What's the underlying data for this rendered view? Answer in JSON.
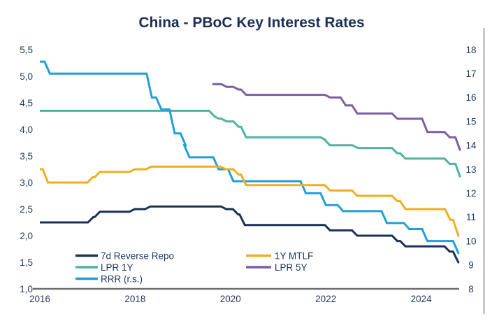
{
  "title": "China - PBoC Key Interest Rates",
  "colors": {
    "navy": "#1b3158",
    "teal": "#4fb3a2",
    "blue": "#1f9fd8",
    "yellow": "#efae1e",
    "purple": "#7c5fa3",
    "text": "#23395c",
    "axis_line": "#6e6e6e",
    "right_border": "#ababab",
    "background": "#ffffff"
  },
  "chart_data": {
    "type": "line",
    "subtype": "step",
    "title": "China - PBoC Key Interest Rates",
    "x_axis": {
      "min": 2016,
      "max": 2024.85,
      "ticks": [
        2016,
        2018,
        2020,
        2022,
        2024
      ],
      "tick_labels": [
        "2016",
        "2018",
        "2020",
        "2022",
        "2024"
      ]
    },
    "left_axis": {
      "min": 1.0,
      "max": 5.5,
      "tick_step": 0.5,
      "ticks": [
        5.5,
        5.0,
        4.5,
        4.0,
        3.5,
        3.0,
        2.5,
        2.0,
        1.5,
        1.0
      ],
      "tick_labels": [
        "5,5",
        "5,0",
        "4,5",
        "4,0",
        "3,5",
        "3,0",
        "2,5",
        "2,0",
        "1,5",
        "1,0"
      ]
    },
    "right_axis": {
      "min": 8,
      "max": 18,
      "tick_step": 1,
      "ticks": [
        18,
        17,
        16,
        15,
        14,
        13,
        12,
        11,
        10,
        9,
        8
      ],
      "tick_labels": [
        "18",
        "17",
        "16",
        "15",
        "14",
        "13",
        "12",
        "11",
        "10",
        "9",
        "8"
      ]
    },
    "grid": false,
    "legend_position": "bottom-left-two-columns",
    "series": [
      {
        "name": "7d Reverse Repo",
        "axis": "left",
        "color": "#1b3158",
        "end": 2024.8,
        "points": [
          [
            2016.0,
            2.25
          ],
          [
            2017.08,
            2.35
          ],
          [
            2017.22,
            2.45
          ],
          [
            2017.95,
            2.5
          ],
          [
            2018.28,
            2.55
          ],
          [
            2019.87,
            2.5
          ],
          [
            2020.12,
            2.4
          ],
          [
            2020.26,
            2.2
          ],
          [
            2022.05,
            2.1
          ],
          [
            2022.62,
            2.0
          ],
          [
            2023.46,
            1.9
          ],
          [
            2023.63,
            1.8
          ],
          [
            2024.56,
            1.7
          ],
          [
            2024.74,
            1.5
          ]
        ]
      },
      {
        "name": "LPR 1Y",
        "axis": "left",
        "color": "#4fb3a2",
        "end": 2024.82,
        "points": [
          [
            2016.0,
            4.35
          ],
          [
            2019.62,
            4.25
          ],
          [
            2019.72,
            4.2
          ],
          [
            2019.88,
            4.15
          ],
          [
            2020.13,
            4.05
          ],
          [
            2020.29,
            3.85
          ],
          [
            2021.96,
            3.8
          ],
          [
            2022.05,
            3.7
          ],
          [
            2022.63,
            3.65
          ],
          [
            2023.46,
            3.55
          ],
          [
            2023.63,
            3.45
          ],
          [
            2024.56,
            3.35
          ],
          [
            2024.79,
            3.1
          ]
        ]
      },
      {
        "name": "RRR (r.s.)",
        "axis": "right",
        "color": "#1f9fd8",
        "end": 2024.8,
        "points": [
          [
            2016.0,
            17.5
          ],
          [
            2016.17,
            17.0
          ],
          [
            2018.31,
            16.0
          ],
          [
            2018.51,
            15.5
          ],
          [
            2018.79,
            14.5
          ],
          [
            2019.02,
            14.0
          ],
          [
            2019.1,
            13.5
          ],
          [
            2019.71,
            13.0
          ],
          [
            2020.02,
            12.5
          ],
          [
            2021.54,
            12.0
          ],
          [
            2021.96,
            11.5
          ],
          [
            2022.32,
            11.25
          ],
          [
            2023.24,
            10.75
          ],
          [
            2023.71,
            10.5
          ],
          [
            2024.09,
            10.0
          ],
          [
            2024.74,
            9.5
          ]
        ]
      },
      {
        "name": "1Y MTLF",
        "axis": "left",
        "color": "#efae1e",
        "end": 2024.8,
        "points": [
          [
            2016.0,
            3.25
          ],
          [
            2016.13,
            3.0
          ],
          [
            2017.07,
            3.1
          ],
          [
            2017.22,
            3.2
          ],
          [
            2017.95,
            3.25
          ],
          [
            2018.3,
            3.3
          ],
          [
            2019.86,
            3.25
          ],
          [
            2020.13,
            3.15
          ],
          [
            2020.29,
            2.95
          ],
          [
            2022.05,
            2.85
          ],
          [
            2022.62,
            2.75
          ],
          [
            2023.46,
            2.65
          ],
          [
            2023.63,
            2.5
          ],
          [
            2024.57,
            2.3
          ],
          [
            2024.74,
            2.0
          ]
        ]
      },
      {
        "name": "LPR 5Y",
        "axis": "left",
        "color": "#7c5fa3",
        "end": 2024.82,
        "points": [
          [
            2019.62,
            4.85
          ],
          [
            2019.88,
            4.8
          ],
          [
            2020.13,
            4.75
          ],
          [
            2020.29,
            4.65
          ],
          [
            2022.05,
            4.6
          ],
          [
            2022.38,
            4.45
          ],
          [
            2022.62,
            4.3
          ],
          [
            2023.46,
            4.2
          ],
          [
            2024.09,
            3.95
          ],
          [
            2024.56,
            3.85
          ],
          [
            2024.79,
            3.6
          ]
        ]
      }
    ],
    "legend": {
      "columns": [
        [
          {
            "label": "7d Reverse Repo",
            "color": "#1b3158"
          },
          {
            "label": "LPR 1Y",
            "color": "#4fb3a2"
          },
          {
            "label": "RRR (r.s.)",
            "color": "#1f9fd8"
          }
        ],
        [
          {
            "label": "1Y MTLF",
            "color": "#efae1e"
          },
          {
            "label": "LPR 5Y",
            "color": "#7c5fa3"
          }
        ]
      ]
    }
  }
}
